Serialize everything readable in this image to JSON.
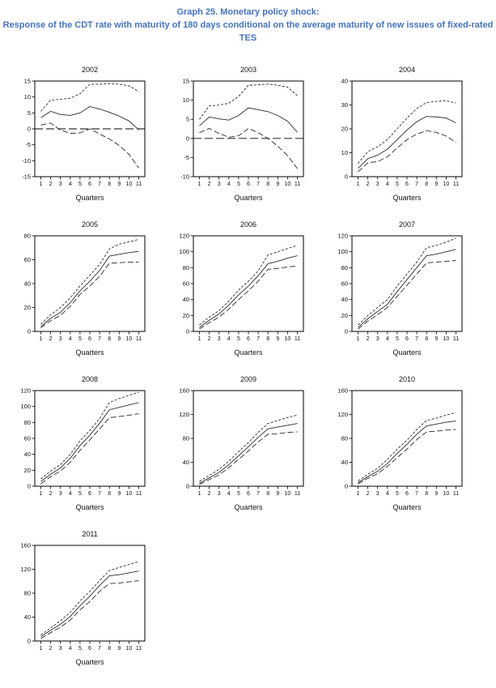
{
  "page": {
    "title_line1": "Graph 25. Monetary policy shock:",
    "title_line2": "Response of the CDT rate with maturity of 180 days conditional on the average maturity of new issues of fixed-rated",
    "title_line3": "TES",
    "title_color": "#4472C4"
  },
  "chart_data": [
    {
      "type": "line",
      "title": "2002",
      "xlabel": "Quarters",
      "x": [
        1,
        2,
        3,
        4,
        5,
        6,
        7,
        8,
        9,
        10,
        11
      ],
      "ylim": [
        -15,
        15
      ],
      "yticks": [
        -15,
        -10,
        -5,
        0,
        5,
        10,
        15
      ],
      "zero_line": true,
      "grid": false,
      "series": [
        {
          "name": "upper-band",
          "style": "dashed",
          "values": [
            5.5,
            9.0,
            9.3,
            9.6,
            11.0,
            14.0,
            14.0,
            14.2,
            14.0,
            13.5,
            11.7
          ]
        },
        {
          "name": "response",
          "style": "solid",
          "values": [
            3.5,
            5.5,
            4.5,
            4.2,
            5.0,
            7.0,
            6.2,
            5.2,
            4.0,
            2.5,
            -0.3
          ]
        },
        {
          "name": "lower-band",
          "style": "dashdash",
          "values": [
            1.2,
            1.8,
            -0.4,
            -1.4,
            -1.3,
            0.0,
            -1.6,
            -3.2,
            -5.2,
            -8.0,
            -12.3
          ]
        }
      ]
    },
    {
      "type": "line",
      "title": "2003",
      "xlabel": "Quarters",
      "x": [
        1,
        2,
        3,
        4,
        5,
        6,
        7,
        8,
        9,
        10,
        11
      ],
      "ylim": [
        -10,
        15
      ],
      "yticks": [
        -10,
        -5,
        0,
        5,
        10,
        15
      ],
      "zero_line": true,
      "grid": false,
      "series": [
        {
          "name": "upper-band",
          "style": "dashed",
          "values": [
            5.0,
            8.5,
            8.7,
            9.2,
            11.0,
            13.9,
            14.0,
            14.2,
            13.9,
            13.4,
            11.2
          ]
        },
        {
          "name": "response",
          "style": "solid",
          "values": [
            3.3,
            5.6,
            5.1,
            4.8,
            6.0,
            8.0,
            7.5,
            7.0,
            6.0,
            4.5,
            1.6
          ]
        },
        {
          "name": "lower-band",
          "style": "dashdash",
          "values": [
            1.5,
            2.6,
            1.3,
            0.3,
            0.7,
            2.6,
            1.5,
            0.0,
            -2.0,
            -4.5,
            -7.9
          ]
        }
      ]
    },
    {
      "type": "line",
      "title": "2004",
      "xlabel": "Quarters",
      "x": [
        1,
        2,
        3,
        4,
        5,
        6,
        7,
        8,
        9,
        10,
        11
      ],
      "ylim": [
        0,
        40
      ],
      "yticks": [
        0,
        10,
        20,
        30,
        40
      ],
      "zero_line": false,
      "grid": false,
      "series": [
        {
          "name": "upper-band",
          "style": "dashed",
          "values": [
            5.5,
            10.5,
            12.5,
            15.5,
            20.0,
            24.5,
            28.5,
            31.0,
            31.5,
            31.8,
            30.8
          ]
        },
        {
          "name": "response",
          "style": "solid",
          "values": [
            3.5,
            7.5,
            9.0,
            11.5,
            15.5,
            19.5,
            23.0,
            25.2,
            25.0,
            24.5,
            22.5
          ]
        },
        {
          "name": "lower-band",
          "style": "dashdash",
          "values": [
            2.0,
            5.8,
            6.3,
            8.3,
            12.0,
            15.5,
            17.8,
            19.2,
            18.5,
            17.0,
            14.3
          ]
        }
      ]
    },
    {
      "type": "line",
      "title": "2005",
      "xlabel": "Quarters",
      "x": [
        1,
        2,
        3,
        4,
        5,
        6,
        7,
        8,
        9,
        10,
        11
      ],
      "ylim": [
        0,
        80
      ],
      "yticks": [
        0,
        20,
        40,
        60,
        80
      ],
      "zero_line": false,
      "grid": false,
      "series": [
        {
          "name": "upper-band",
          "style": "dashed",
          "values": [
            6.0,
            14.0,
            20.0,
            28.0,
            38.0,
            47.0,
            56.0,
            69.0,
            73.0,
            75.0,
            77.0
          ]
        },
        {
          "name": "response",
          "style": "solid",
          "values": [
            4.0,
            11.0,
            16.0,
            24.0,
            34.0,
            42.0,
            51.0,
            63.0,
            64.5,
            66.0,
            67.0
          ]
        },
        {
          "name": "lower-band",
          "style": "dashdash",
          "values": [
            3.0,
            9.0,
            13.5,
            21.0,
            31.0,
            38.0,
            46.0,
            57.0,
            57.5,
            58.0,
            58.0
          ]
        }
      ]
    },
    {
      "type": "line",
      "title": "2006",
      "xlabel": "Quarters",
      "x": [
        1,
        2,
        3,
        4,
        5,
        6,
        7,
        8,
        9,
        10,
        11
      ],
      "ylim": [
        0,
        120
      ],
      "yticks": [
        0,
        20,
        40,
        60,
        80,
        100,
        120
      ],
      "zero_line": false,
      "grid": false,
      "series": [
        {
          "name": "upper-band",
          "style": "dashed",
          "values": [
            8.0,
            18.0,
            26.0,
            38.0,
            52.0,
            63.0,
            76.0,
            96.0,
            100.0,
            104.0,
            108.0
          ]
        },
        {
          "name": "response",
          "style": "solid",
          "values": [
            5.0,
            14.0,
            22.0,
            33.0,
            46.0,
            57.0,
            70.0,
            85.0,
            88.0,
            92.0,
            95.0
          ]
        },
        {
          "name": "lower-band",
          "style": "dashdash",
          "values": [
            3.0,
            11.0,
            18.0,
            28.0,
            40.0,
            51.0,
            63.0,
            78.0,
            79.0,
            81.0,
            82.0
          ]
        }
      ]
    },
    {
      "type": "line",
      "title": "2007",
      "xlabel": "Quarters",
      "x": [
        1,
        2,
        3,
        4,
        5,
        6,
        7,
        8,
        9,
        10,
        11
      ],
      "ylim": [
        0,
        120
      ],
      "yticks": [
        0,
        20,
        40,
        60,
        80,
        100,
        120
      ],
      "zero_line": false,
      "grid": false,
      "series": [
        {
          "name": "upper-band",
          "style": "dashed",
          "values": [
            8.0,
            20.0,
            30.0,
            40.0,
            57.0,
            72.0,
            87.0,
            105.0,
            108.0,
            112.0,
            117.0
          ]
        },
        {
          "name": "response",
          "style": "solid",
          "values": [
            5.0,
            16.0,
            25.0,
            34.0,
            50.0,
            65.0,
            80.0,
            95.0,
            97.0,
            100.0,
            103.0
          ]
        },
        {
          "name": "lower-band",
          "style": "dashdash",
          "values": [
            3.0,
            13.0,
            21.0,
            30.0,
            44.0,
            58.0,
            72.0,
            86.0,
            87.0,
            88.0,
            89.0
          ]
        }
      ]
    },
    {
      "type": "line",
      "title": "2008",
      "xlabel": "Quarters",
      "x": [
        1,
        2,
        3,
        4,
        5,
        6,
        7,
        8,
        9,
        10,
        11
      ],
      "ylim": [
        0,
        120
      ],
      "yticks": [
        0,
        20,
        40,
        60,
        80,
        100,
        120
      ],
      "zero_line": false,
      "grid": false,
      "series": [
        {
          "name": "upper-band",
          "style": "dashed",
          "values": [
            9.0,
            19.0,
            27.0,
            40.0,
            57.0,
            70.0,
            85.0,
            105.0,
            110.0,
            114.0,
            118.0
          ]
        },
        {
          "name": "response",
          "style": "solid",
          "values": [
            6.0,
            15.0,
            23.0,
            35.0,
            51.0,
            64.0,
            79.0,
            96.0,
            99.0,
            102.0,
            105.0
          ]
        },
        {
          "name": "lower-band",
          "style": "dashdash",
          "values": [
            3.0,
            12.0,
            19.0,
            30.0,
            45.0,
            58.0,
            72.0,
            86.0,
            87.5,
            89.0,
            91.0
          ]
        }
      ]
    },
    {
      "type": "line",
      "title": "2009",
      "xlabel": "Quarters",
      "x": [
        1,
        2,
        3,
        4,
        5,
        6,
        7,
        8,
        9,
        10,
        11
      ],
      "ylim": [
        0,
        160
      ],
      "yticks": [
        0,
        40,
        80,
        120,
        160
      ],
      "zero_line": false,
      "grid": false,
      "series": [
        {
          "name": "upper-band",
          "style": "dashed",
          "values": [
            8.0,
            18.0,
            28.0,
            42.0,
            58.0,
            73.0,
            90.0,
            105.0,
            110.0,
            115.0,
            119.0
          ]
        },
        {
          "name": "response",
          "style": "solid",
          "values": [
            5.0,
            14.0,
            23.0,
            36.0,
            51.0,
            66.0,
            82.0,
            96.0,
            99.0,
            102.0,
            105.0
          ]
        },
        {
          "name": "lower-band",
          "style": "dashdash",
          "values": [
            3.0,
            11.0,
            19.0,
            31.0,
            45.0,
            59.0,
            74.0,
            87.0,
            88.0,
            90.0,
            91.0
          ]
        }
      ]
    },
    {
      "type": "line",
      "title": "2010",
      "xlabel": "Quarters",
      "x": [
        1,
        2,
        3,
        4,
        5,
        6,
        7,
        8,
        9,
        10,
        11
      ],
      "ylim": [
        0,
        160
      ],
      "yticks": [
        0,
        40,
        80,
        120,
        160
      ],
      "zero_line": false,
      "grid": false,
      "series": [
        {
          "name": "upper-band",
          "style": "dashed",
          "values": [
            9.0,
            20.0,
            30.0,
            45.0,
            62.0,
            77.0,
            95.0,
            110.0,
            114.0,
            119.0,
            123.0
          ]
        },
        {
          "name": "response",
          "style": "solid",
          "values": [
            6.0,
            16.0,
            25.0,
            38.0,
            55.0,
            70.0,
            87.0,
            101.0,
            104.0,
            107.0,
            109.0
          ]
        },
        {
          "name": "lower-band",
          "style": "dashdash",
          "values": [
            4.0,
            13.0,
            21.0,
            33.0,
            48.0,
            62.0,
            78.0,
            91.0,
            92.0,
            94.0,
            95.0
          ]
        }
      ]
    },
    {
      "type": "line",
      "title": "2011",
      "xlabel": "Quarters",
      "x": [
        1,
        2,
        3,
        4,
        5,
        6,
        7,
        8,
        9,
        10,
        11
      ],
      "ylim": [
        0,
        160
      ],
      "yticks": [
        0,
        40,
        80,
        120,
        160
      ],
      "zero_line": false,
      "grid": false,
      "series": [
        {
          "name": "upper-band",
          "style": "dashed",
          "values": [
            10.0,
            22.0,
            34.0,
            48.0,
            67.0,
            83.0,
            101.0,
            118.0,
            123.0,
            128.0,
            133.0
          ]
        },
        {
          "name": "response",
          "style": "solid",
          "values": [
            7.0,
            18.0,
            28.0,
            41.0,
            59.0,
            75.0,
            93.0,
            109.0,
            111.0,
            114.0,
            117.0
          ]
        },
        {
          "name": "lower-band",
          "style": "dashdash",
          "values": [
            4.0,
            14.0,
            23.0,
            35.0,
            52.0,
            66.0,
            83.0,
            96.0,
            97.0,
            99.0,
            101.0
          ]
        }
      ]
    }
  ]
}
